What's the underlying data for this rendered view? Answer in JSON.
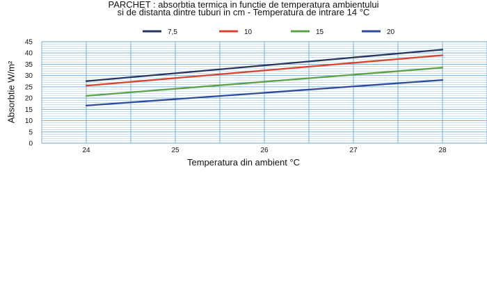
{
  "chart_data": {
    "type": "line",
    "title_line1": "PARCHET : absorbtia termica in functie de temperatura ambientului",
    "title_line2": "si de distanta dintre tuburi in cm -        Temperatura de intrare 14   °C",
    "xlabel": "Temperatura din ambient    °C",
    "ylabel": "Absorbtie W/m²",
    "x": [
      24,
      28
    ],
    "xticks": [
      24,
      25,
      26,
      27,
      28
    ],
    "xlim": [
      23.5,
      28.5
    ],
    "ylim": [
      0,
      45
    ],
    "yticks": [
      0,
      5,
      10,
      15,
      20,
      25,
      30,
      35,
      40,
      45
    ],
    "grid": true,
    "legend_position": "top",
    "series": [
      {
        "name": "7,5",
        "color": "#26335a",
        "values": [
          27.5,
          41.5
        ]
      },
      {
        "name": "10",
        "color": "#d9432f",
        "values": [
          25.5,
          39.0
        ]
      },
      {
        "name": "15",
        "color": "#5ba046",
        "values": [
          21.0,
          33.5
        ]
      },
      {
        "name": "20",
        "color": "#2e4a9a",
        "values": [
          16.7,
          28.0
        ]
      }
    ]
  }
}
